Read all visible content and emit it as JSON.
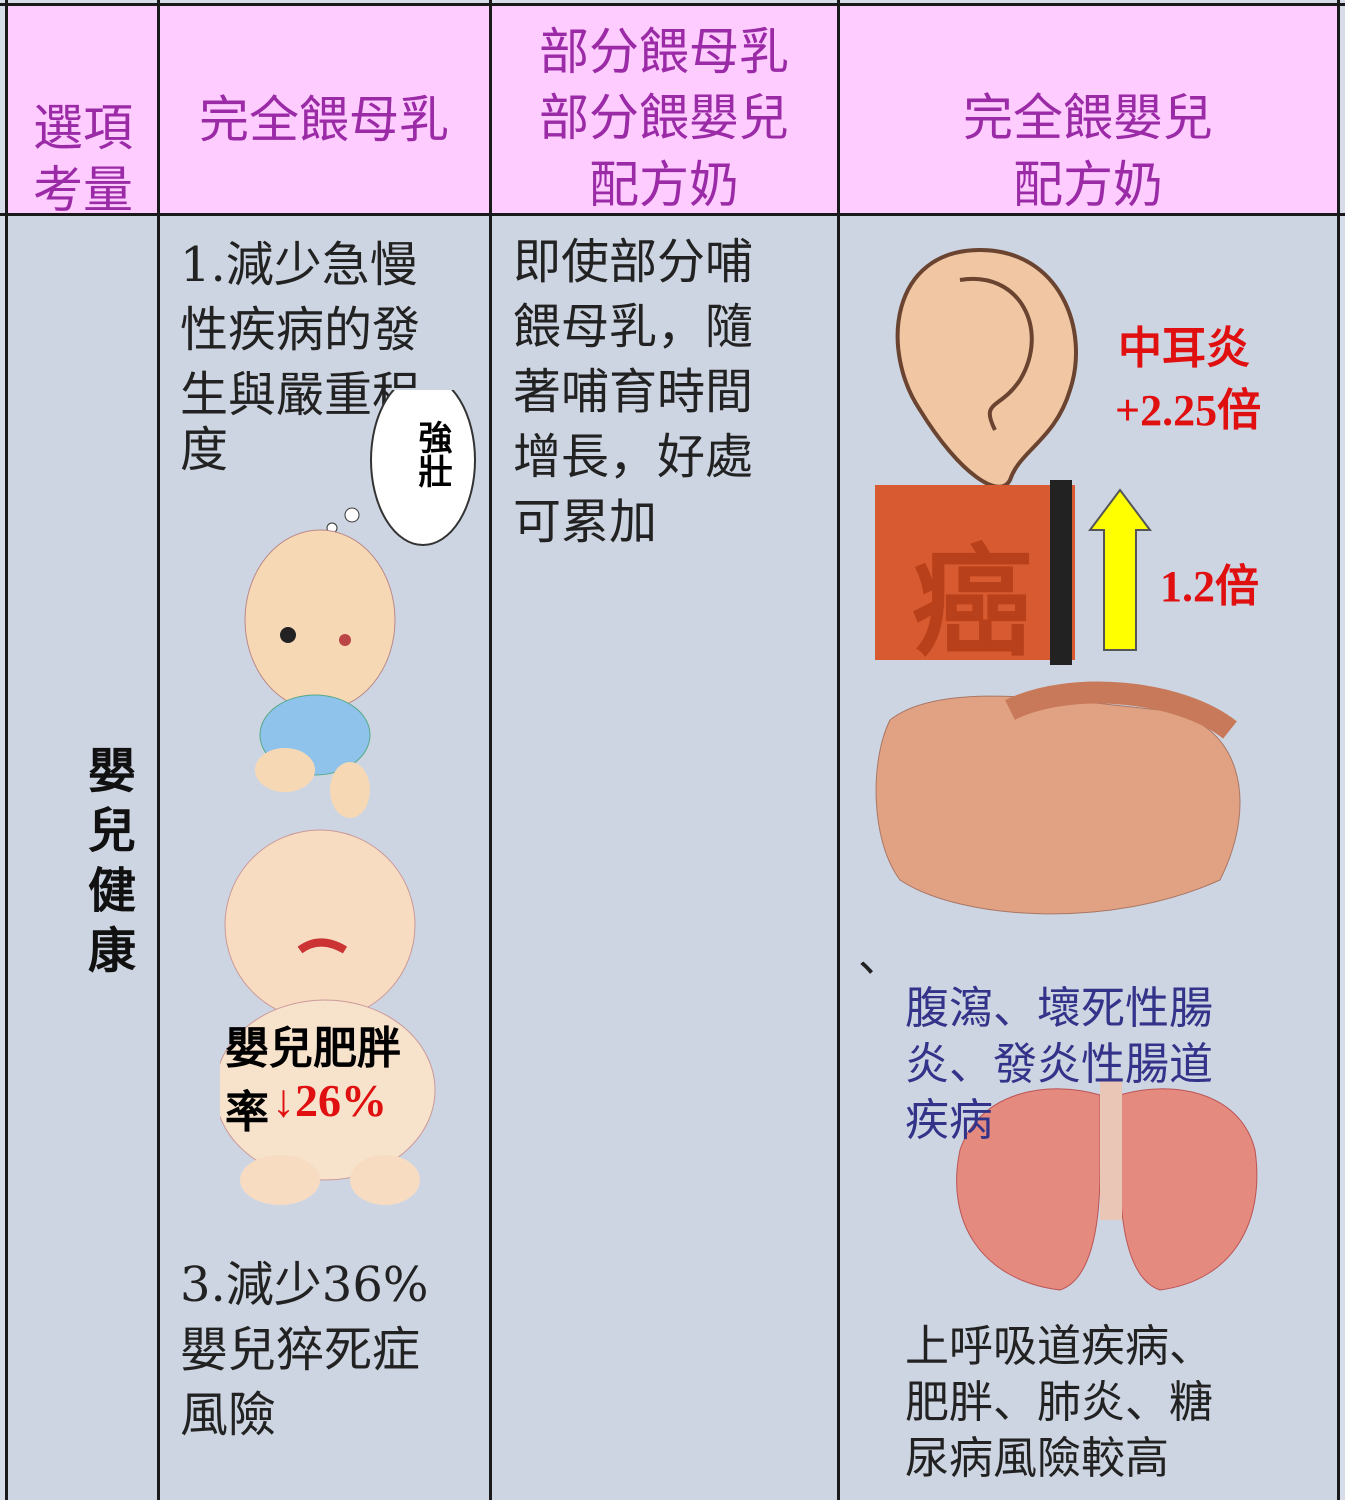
{
  "table": {
    "header": [
      [
        "選項",
        "考量"
      ],
      [
        "完全餵母乳"
      ],
      [
        "部分餵母乳",
        "部分餵嬰兒",
        "配方奶"
      ],
      [
        "完全餵嬰兒",
        "配方奶"
      ]
    ],
    "row_label": "嬰兒健康",
    "exclusive_breastfeeding": {
      "point1": [
        "1.減少急慢",
        "性疾病的發",
        "生與嚴重程",
        "度"
      ],
      "bubble": "強壯",
      "obesity_label": "嬰兒肥胖",
      "obesity_rate": "率",
      "obesity_change": "↓26%",
      "point3": [
        "3.減少36%",
        "嬰兒猝死症",
        "風險"
      ]
    },
    "partial_feeding": [
      "即使部分哺",
      "餵母乳，隨",
      "著哺育時間",
      "增長，好處",
      "可累加"
    ],
    "exclusive_formula": {
      "otitis": "中耳炎",
      "otitis_risk": "+2.25倍",
      "cancer_icon": "癌",
      "cancer_risk": "1.2倍",
      "comma": "、",
      "gut_diseases": [
        "腹瀉、壞死性腸",
        "炎、發炎性腸道",
        "疾病"
      ],
      "other_risks": [
        "上呼吸道疾病、",
        "肥胖、肺炎、糖",
        "尿病風險較高"
      ]
    }
  }
}
